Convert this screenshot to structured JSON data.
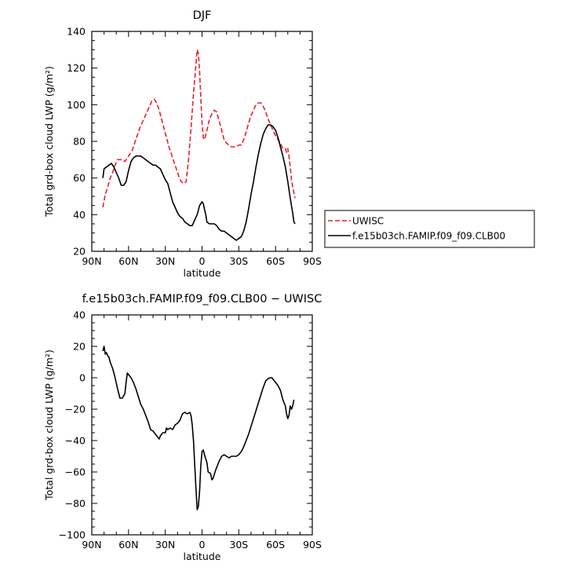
{
  "chart_data": [
    {
      "type": "line",
      "title": "DJF",
      "xlabel": "latitude",
      "ylabel": "Total grd-box cloud LWP (g/m²)",
      "xlim": [
        90,
        -90
      ],
      "ylim": [
        20,
        140
      ],
      "x_ticks": [
        90,
        60,
        30,
        0,
        -30,
        -60,
        -90
      ],
      "x_tick_labels": [
        "90N",
        "60N",
        "30N",
        "0",
        "30S",
        "60S",
        "90S"
      ],
      "y_ticks": [
        20,
        40,
        60,
        80,
        100,
        120,
        140
      ],
      "y_tick_labels": [
        "20",
        "40",
        "60",
        "80",
        "100",
        "120",
        "140"
      ],
      "legend": "right",
      "series": [
        {
          "name": "UWISC",
          "color": "#e8202a",
          "dash": "dashed",
          "points": [
            [
              81,
              44
            ],
            [
              79,
              51
            ],
            [
              77,
              55
            ],
            [
              75,
              60
            ],
            [
              73,
              63
            ],
            [
              71,
              67
            ],
            [
              69,
              70
            ],
            [
              67,
              70
            ],
            [
              65,
              70
            ],
            [
              63,
              69
            ],
            [
              61,
              71
            ],
            [
              59,
              73
            ],
            [
              57,
              75
            ],
            [
              55,
              79
            ],
            [
              53,
              83
            ],
            [
              51,
              87
            ],
            [
              49,
              90
            ],
            [
              47,
              93
            ],
            [
              45,
              96
            ],
            [
              43,
              99
            ],
            [
              41,
              102
            ],
            [
              39,
              103
            ],
            [
              37,
              101
            ],
            [
              35,
              97
            ],
            [
              33,
              92
            ],
            [
              31,
              87
            ],
            [
              29,
              82
            ],
            [
              27,
              77
            ],
            [
              25,
              73
            ],
            [
              23,
              69
            ],
            [
              21,
              65
            ],
            [
              19,
              61
            ],
            [
              17,
              58
            ],
            [
              15,
              57
            ],
            [
              13,
              58
            ],
            [
              11,
              70
            ],
            [
              9,
              87
            ],
            [
              7,
              106
            ],
            [
              5,
              122
            ],
            [
              4,
              130
            ],
            [
              3,
              128
            ],
            [
              2,
              118
            ],
            [
              1,
              104
            ],
            [
              0,
              90
            ],
            [
              -1,
              82
            ],
            [
              -2,
              81
            ],
            [
              -4,
              86
            ],
            [
              -6,
              92
            ],
            [
              -8,
              95
            ],
            [
              -10,
              97
            ],
            [
              -12,
              96
            ],
            [
              -14,
              91
            ],
            [
              -16,
              86
            ],
            [
              -18,
              81
            ],
            [
              -20,
              79
            ],
            [
              -22,
              78
            ],
            [
              -24,
              77
            ],
            [
              -26,
              77
            ],
            [
              -28,
              77
            ],
            [
              -30,
              78
            ],
            [
              -32,
              78
            ],
            [
              -34,
              81
            ],
            [
              -36,
              85
            ],
            [
              -38,
              90
            ],
            [
              -40,
              94
            ],
            [
              -42,
              97
            ],
            [
              -44,
              100
            ],
            [
              -46,
              101
            ],
            [
              -48,
              101
            ],
            [
              -50,
              99
            ],
            [
              -52,
              96
            ],
            [
              -54,
              92
            ],
            [
              -56,
              89
            ],
            [
              -58,
              86
            ],
            [
              -60,
              83
            ],
            [
              -62,
              81
            ],
            [
              -64,
              79
            ],
            [
              -66,
              76
            ],
            [
              -68,
              76
            ],
            [
              -69,
              74
            ],
            [
              -70,
              76
            ],
            [
              -71,
              72
            ],
            [
              -72,
              66
            ],
            [
              -73,
              59
            ],
            [
              -74,
              55
            ],
            [
              -75,
              52
            ],
            [
              -76,
              49
            ]
          ]
        },
        {
          "name": "f.e15b03ch.FAMIP.f09_f09.CLB00",
          "color": "#000000",
          "dash": "solid",
          "points": [
            [
              81,
              60
            ],
            [
              80,
              65
            ],
            [
              78,
              66
            ],
            [
              76,
              67
            ],
            [
              74,
              68
            ],
            [
              72,
              66
            ],
            [
              70,
              63
            ],
            [
              68,
              60
            ],
            [
              66,
              56
            ],
            [
              64,
              56
            ],
            [
              62,
              58
            ],
            [
              60,
              64
            ],
            [
              58,
              69
            ],
            [
              56,
              71
            ],
            [
              54,
              72
            ],
            [
              52,
              72
            ],
            [
              50,
              72
            ],
            [
              48,
              71
            ],
            [
              46,
              70
            ],
            [
              44,
              69
            ],
            [
              42,
              68
            ],
            [
              40,
              67
            ],
            [
              38,
              67
            ],
            [
              36,
              66
            ],
            [
              34,
              65
            ],
            [
              32,
              62
            ],
            [
              30,
              59
            ],
            [
              28,
              57
            ],
            [
              26,
              52
            ],
            [
              24,
              47
            ],
            [
              22,
              44
            ],
            [
              20,
              41
            ],
            [
              18,
              39
            ],
            [
              16,
              38
            ],
            [
              14,
              36
            ],
            [
              12,
              35
            ],
            [
              10,
              34
            ],
            [
              8,
              34
            ],
            [
              6,
              37
            ],
            [
              4,
              40
            ],
            [
              2,
              45
            ],
            [
              0,
              47
            ],
            [
              -1,
              46
            ],
            [
              -2,
              43
            ],
            [
              -3,
              40
            ],
            [
              -4,
              36
            ],
            [
              -6,
              35
            ],
            [
              -8,
              35
            ],
            [
              -10,
              35
            ],
            [
              -12,
              34
            ],
            [
              -14,
              32
            ],
            [
              -16,
              31
            ],
            [
              -18,
              31
            ],
            [
              -20,
              30
            ],
            [
              -22,
              29
            ],
            [
              -24,
              28
            ],
            [
              -26,
              27
            ],
            [
              -28,
              26
            ],
            [
              -30,
              27
            ],
            [
              -32,
              28
            ],
            [
              -34,
              31
            ],
            [
              -36,
              36
            ],
            [
              -38,
              43
            ],
            [
              -40,
              51
            ],
            [
              -42,
              58
            ],
            [
              -44,
              66
            ],
            [
              -46,
              73
            ],
            [
              -48,
              79
            ],
            [
              -50,
              84
            ],
            [
              -52,
              87
            ],
            [
              -54,
              89
            ],
            [
              -56,
              89
            ],
            [
              -58,
              88
            ],
            [
              -60,
              86
            ],
            [
              -62,
              82
            ],
            [
              -64,
              77
            ],
            [
              -66,
              72
            ],
            [
              -68,
              66
            ],
            [
              -70,
              58
            ],
            [
              -72,
              49
            ],
            [
              -74,
              41
            ],
            [
              -75,
              36
            ],
            [
              -76,
              35
            ]
          ]
        }
      ]
    },
    {
      "type": "line",
      "title": "f.e15b03ch.FAMIP.f09_f09.CLB00 − UWISC",
      "xlabel": "latitude",
      "ylabel": "Total grd-box cloud LWP (g/m²)",
      "xlim": [
        90,
        -90
      ],
      "ylim": [
        -100,
        40
      ],
      "x_ticks": [
        90,
        60,
        30,
        0,
        -30,
        -60,
        -90
      ],
      "x_tick_labels": [
        "90N",
        "60N",
        "30N",
        "0",
        "30S",
        "60S",
        "90S"
      ],
      "y_ticks": [
        -100,
        -80,
        -60,
        -40,
        -20,
        0,
        20,
        40
      ],
      "y_tick_labels": [
        "−100",
        "−80",
        "−60",
        "−40",
        "−20",
        "0",
        "20",
        "40"
      ],
      "series": [
        {
          "color": "#000000",
          "dash": "solid",
          "points": [
            [
              81,
              17
            ],
            [
              80,
              20
            ],
            [
              79,
              15
            ],
            [
              78,
              16
            ],
            [
              77,
              14
            ],
            [
              76,
              13
            ],
            [
              75,
              10
            ],
            [
              73,
              6
            ],
            [
              71,
              0
            ],
            [
              69,
              -7
            ],
            [
              67,
              -13
            ],
            [
              65,
              -13
            ],
            [
              63,
              -10
            ],
            [
              62,
              -3
            ],
            [
              61,
              3
            ],
            [
              60,
              2
            ],
            [
              58,
              0
            ],
            [
              56,
              -3
            ],
            [
              54,
              -7
            ],
            [
              52,
              -12
            ],
            [
              50,
              -17
            ],
            [
              48,
              -20
            ],
            [
              46,
              -24
            ],
            [
              44,
              -28
            ],
            [
              42,
              -33
            ],
            [
              40,
              -34
            ],
            [
              38,
              -36
            ],
            [
              36,
              -38
            ],
            [
              35,
              -39
            ],
            [
              34,
              -37
            ],
            [
              32,
              -35
            ],
            [
              30,
              -35
            ],
            [
              29,
              -32
            ],
            [
              28,
              -33
            ],
            [
              26,
              -32
            ],
            [
              24,
              -33
            ],
            [
              22,
              -30
            ],
            [
              20,
              -29
            ],
            [
              18,
              -27
            ],
            [
              16,
              -23
            ],
            [
              14,
              -22
            ],
            [
              12,
              -23
            ],
            [
              10,
              -22
            ],
            [
              9,
              -24
            ],
            [
              8,
              -30
            ],
            [
              7,
              -40
            ],
            [
              6,
              -55
            ],
            [
              5,
              -70
            ],
            [
              4,
              -84
            ],
            [
              3,
              -82
            ],
            [
              2,
              -72
            ],
            [
              1,
              -56
            ],
            [
              0,
              -47
            ],
            [
              -1,
              -46
            ],
            [
              -2,
              -49
            ],
            [
              -4,
              -54
            ],
            [
              -5,
              -60
            ],
            [
              -7,
              -61
            ],
            [
              -8,
              -65
            ],
            [
              -9,
              -64
            ],
            [
              -11,
              -59
            ],
            [
              -13,
              -55
            ],
            [
              -14,
              -53
            ],
            [
              -16,
              -50
            ],
            [
              -18,
              -49
            ],
            [
              -20,
              -50
            ],
            [
              -22,
              -51
            ],
            [
              -24,
              -50
            ],
            [
              -26,
              -50
            ],
            [
              -28,
              -50
            ],
            [
              -30,
              -49
            ],
            [
              -32,
              -47
            ],
            [
              -34,
              -44
            ],
            [
              -36,
              -40
            ],
            [
              -38,
              -36
            ],
            [
              -40,
              -31
            ],
            [
              -42,
              -26
            ],
            [
              -44,
              -21
            ],
            [
              -46,
              -16
            ],
            [
              -48,
              -11
            ],
            [
              -50,
              -6
            ],
            [
              -52,
              -2
            ],
            [
              -54,
              -0.5
            ],
            [
              -56,
              0
            ],
            [
              -57,
              0
            ],
            [
              -58,
              -1
            ],
            [
              -60,
              -3
            ],
            [
              -62,
              -5
            ],
            [
              -64,
              -8
            ],
            [
              -66,
              -14
            ],
            [
              -68,
              -18
            ],
            [
              -69,
              -23
            ],
            [
              -70,
              -26
            ],
            [
              -71,
              -24
            ],
            [
              -72,
              -18
            ],
            [
              -73,
              -20
            ],
            [
              -74,
              -18
            ],
            [
              -75,
              -14
            ]
          ]
        }
      ]
    }
  ]
}
